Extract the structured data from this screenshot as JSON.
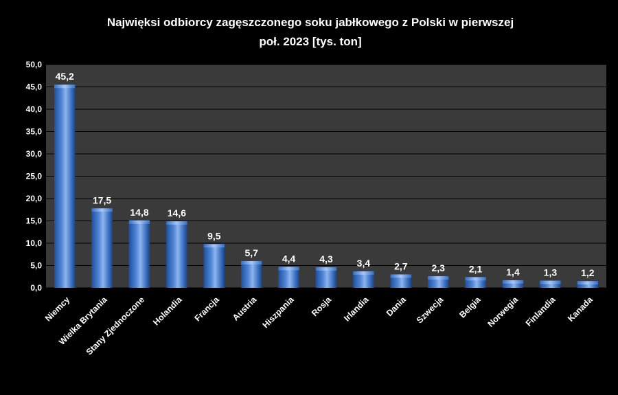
{
  "chart_data": {
    "type": "bar",
    "title_lines": [
      "Najwięksi odbiorcy zagęszczonego soku jabłkowego z Polski w pierwszej",
      "poł. 2023 [tys. ton]"
    ],
    "categories": [
      "Niemcy",
      "Wielka Brytania",
      "Stany Zjednoczone",
      "Holandia",
      "Francja",
      "Austria",
      "Hiszpania",
      "Rosja",
      "Irlandia",
      "Dania",
      "Szwecja",
      "Belgia",
      "Norwegia",
      "Finlandia",
      "Kanada"
    ],
    "values": [
      45.2,
      17.5,
      14.8,
      14.6,
      9.5,
      5.7,
      4.4,
      4.3,
      3.4,
      2.7,
      2.3,
      2.1,
      1.4,
      1.3,
      1.2
    ],
    "data_labels": [
      "45,2",
      "17,5",
      "14,8",
      "14,6",
      "9,5",
      "5,7",
      "4,4",
      "4,3",
      "3,4",
      "2,7",
      "2,3",
      "2,1",
      "1,4",
      "1,3",
      "1,2"
    ],
    "y_ticks": [
      0,
      5,
      10,
      15,
      20,
      25,
      30,
      35,
      40,
      45,
      50
    ],
    "y_tick_labels": [
      "0,0",
      "5,0",
      "10,0",
      "15,0",
      "20,0",
      "25,0",
      "30,0",
      "35,0",
      "40,0",
      "45,0",
      "50,0"
    ],
    "ylim": [
      0,
      50
    ],
    "grid": true,
    "legend": "none",
    "xlabel": "",
    "ylabel": "",
    "colors": {
      "background": "#000000",
      "plot_background": "#3a3a3a",
      "bar_dark": "#1f4f9c",
      "bar_mid": "#4f86d6",
      "bar_light": "#8fb4ee",
      "grid": "#000000",
      "text": "#ffffff"
    }
  }
}
